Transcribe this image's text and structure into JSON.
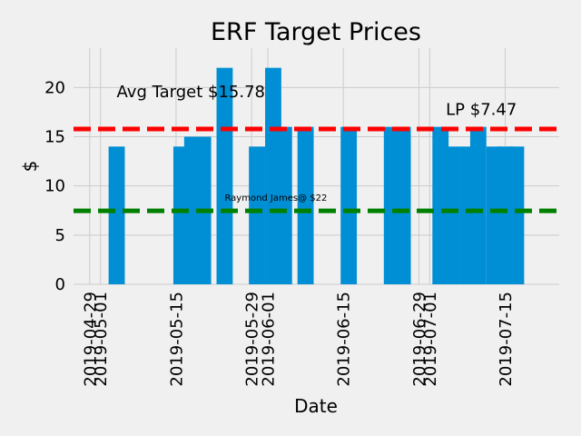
{
  "chart_data": {
    "type": "bar",
    "title": "ERF Target Prices",
    "xlabel": "Date",
    "ylabel": "$",
    "ylim": [
      0,
      24
    ],
    "xlim": [
      "2019-04-26",
      "2019-07-25"
    ],
    "x_ticks": [
      "2019-04-29",
      "2019-05-01",
      "2019-05-15",
      "2019-05-29",
      "2019-06-01",
      "2019-06-15",
      "2019-06-29",
      "2019-07-01",
      "2019-07-15"
    ],
    "y_ticks": [
      0,
      5,
      10,
      15,
      20
    ],
    "bar_width_days": 3,
    "grid": true,
    "bar_color": "#008fd5",
    "bars": [
      {
        "date": "2019-05-04",
        "value": 14
      },
      {
        "date": "2019-05-16",
        "value": 14
      },
      {
        "date": "2019-05-18",
        "value": 15
      },
      {
        "date": "2019-05-20",
        "value": 15
      },
      {
        "date": "2019-05-24",
        "value": 22
      },
      {
        "date": "2019-05-30",
        "value": 14
      },
      {
        "date": "2019-06-02",
        "value": 22
      },
      {
        "date": "2019-06-04",
        "value": 16
      },
      {
        "date": "2019-06-08",
        "value": 16
      },
      {
        "date": "2019-06-16",
        "value": 16
      },
      {
        "date": "2019-06-24",
        "value": 16
      },
      {
        "date": "2019-06-26",
        "value": 16
      },
      {
        "date": "2019-07-03",
        "value": 16
      },
      {
        "date": "2019-07-05",
        "value": 14
      },
      {
        "date": "2019-07-08",
        "value": 14
      },
      {
        "date": "2019-07-10",
        "value": 16
      },
      {
        "date": "2019-07-13",
        "value": 14
      },
      {
        "date": "2019-07-15",
        "value": 14
      },
      {
        "date": "2019-07-17",
        "value": 14
      }
    ],
    "reference_lines": [
      {
        "label": "Avg Target $15.78",
        "value": 15.78,
        "color": "#ff0000"
      },
      {
        "label": "LP $7.47",
        "value": 7.47,
        "color": "#008000"
      }
    ],
    "annotations": [
      {
        "text": "Avg Target $15.78",
        "x": "2019-05-04",
        "y": 19,
        "style": "large"
      },
      {
        "text": "LP $7.47",
        "x": "2019-07-04",
        "y": 17.2,
        "style": "large"
      },
      {
        "text": "Raymond James@ $22",
        "x": "2019-05-24",
        "y": 8.5,
        "style": "small"
      }
    ]
  }
}
